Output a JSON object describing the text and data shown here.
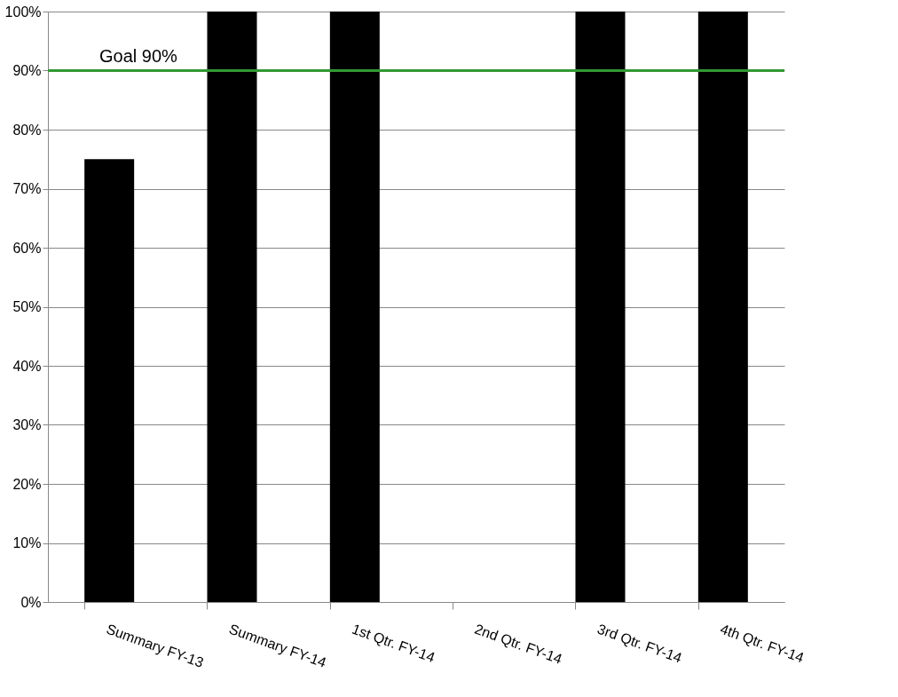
{
  "chart_data": {
    "type": "bar",
    "categories": [
      "Summary FY-13",
      "Summary FY-14",
      "1st Qtr. FY-14",
      "2nd Qtr. FY-14",
      "3rd Qtr. FY-14",
      "4th Qtr. FY-14"
    ],
    "values": [
      75,
      100,
      100,
      null,
      100,
      100
    ],
    "color": "#000000",
    "ylim": [
      0,
      100
    ],
    "yticks": [
      {
        "value": 0,
        "label": "0%"
      },
      {
        "value": 10,
        "label": "10%"
      },
      {
        "value": 20,
        "label": "20%"
      },
      {
        "value": 30,
        "label": "30%"
      },
      {
        "value": 40,
        "label": "40%"
      },
      {
        "value": 50,
        "label": "50%"
      },
      {
        "value": 60,
        "label": "60%"
      },
      {
        "value": 70,
        "label": "70%"
      },
      {
        "value": 80,
        "label": "80%"
      },
      {
        "value": 90,
        "label": "90%"
      },
      {
        "value": 100,
        "label": "100%"
      }
    ],
    "ref_lines": [
      {
        "axis": "y",
        "value": 90,
        "label": "Goal  90%",
        "color": "#339933"
      }
    ],
    "grid": "y"
  }
}
